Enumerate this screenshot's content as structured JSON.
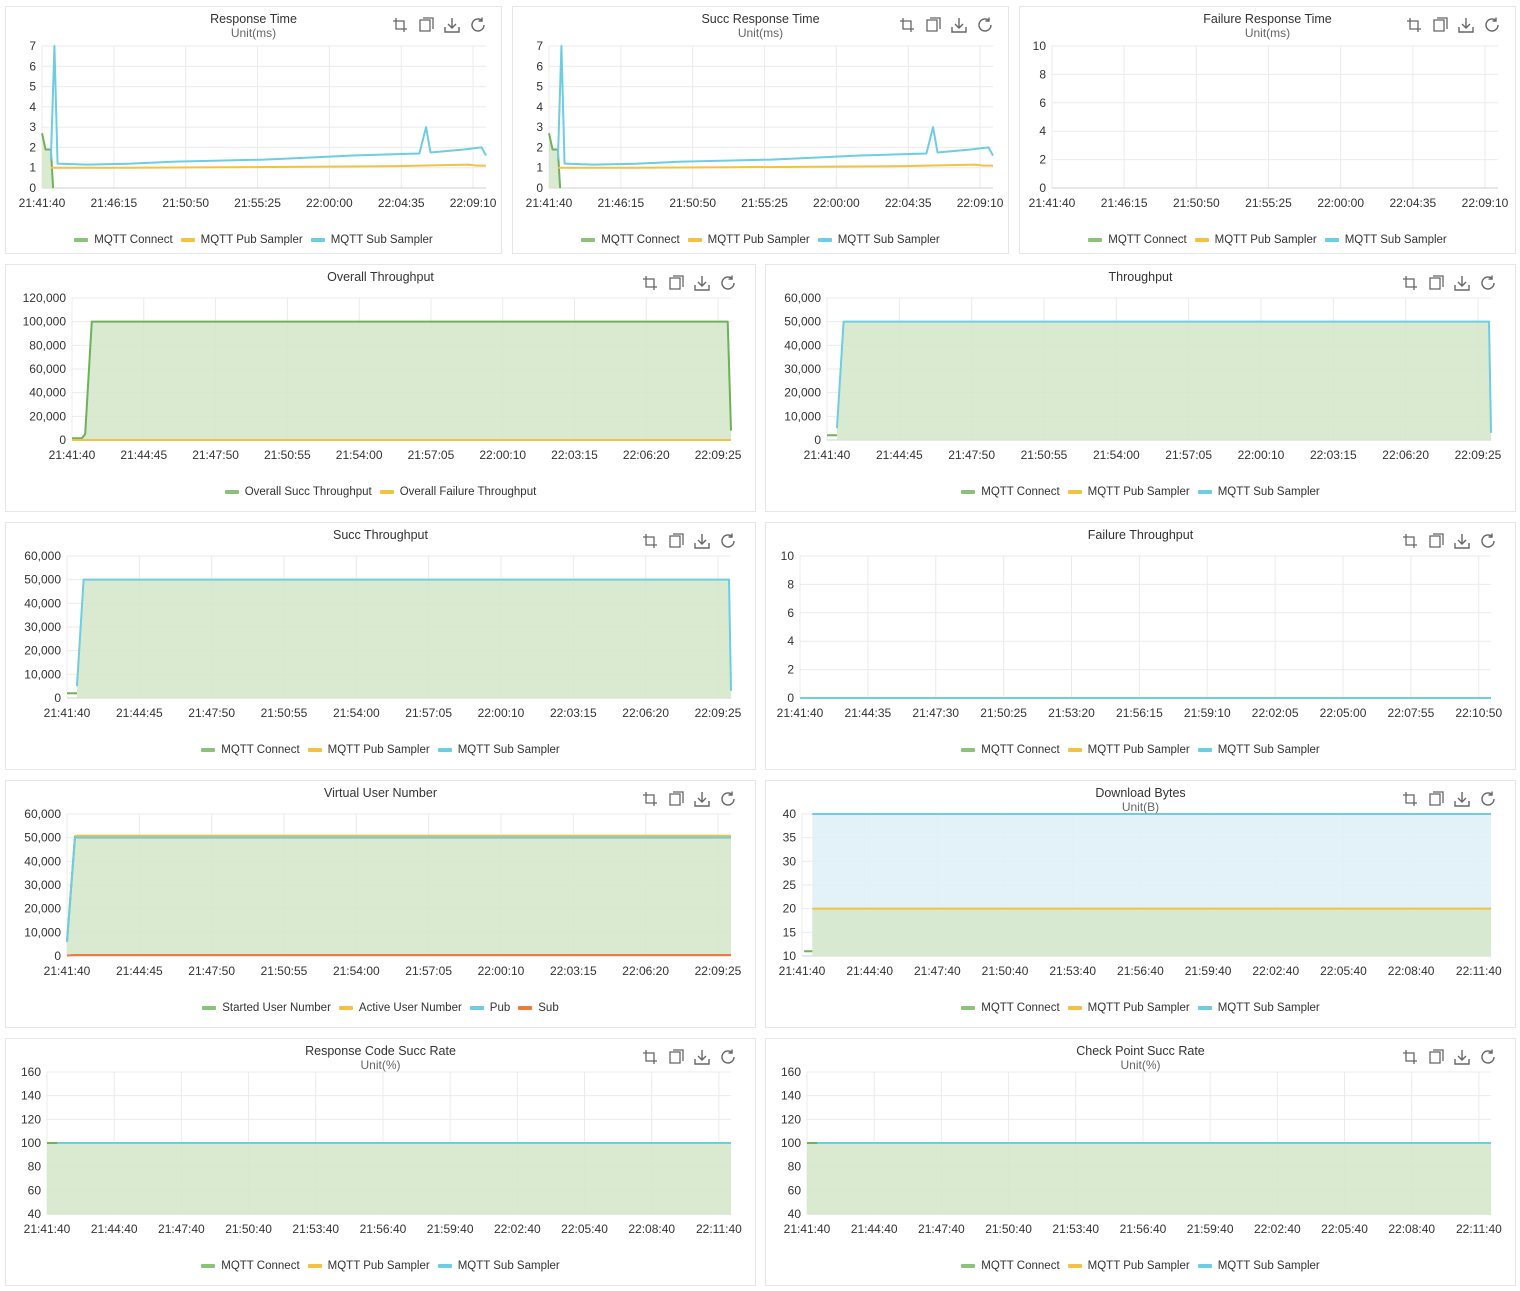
{
  "colors": {
    "connect": "#8bc27a",
    "connect_line": "#6fb05a",
    "pub": "#f5c143",
    "sub": "#6dcde2",
    "sub_user": "#f07a3a",
    "fill_green": "#d6e8cc",
    "fill_blue": "#dff1f7",
    "grid": "#ebebeb",
    "icon": "#666666"
  },
  "toolbox_icons": [
    "zoom-icon",
    "zoom-reset-icon",
    "download-icon",
    "restore-icon"
  ],
  "chart_data": [
    {
      "id": "response-time",
      "type": "line",
      "title": "Response Time",
      "subtitle": "Unit(ms)",
      "ylim": [
        0,
        7
      ],
      "yticks": [
        "0",
        "1",
        "2",
        "3",
        "4",
        "5",
        "6",
        "7"
      ],
      "xticks": [
        "21:41:40",
        "21:46:15",
        "21:50:50",
        "21:55:25",
        "22:00:00",
        "22:04:35",
        "22:09:10"
      ],
      "legend": [
        "MQTT Connect",
        "MQTT Pub Sampler",
        "MQTT Sub Sampler"
      ],
      "series": [
        {
          "name": "MQTT Connect",
          "color_key": "connect_line",
          "area": true,
          "points": [
            [
              0,
              2.7
            ],
            [
              0.008,
              1.9
            ],
            [
              0.02,
              1.9
            ],
            [
              0.025,
              0
            ]
          ]
        },
        {
          "name": "MQTT Pub Sampler",
          "color_key": "pub",
          "points": [
            [
              0.02,
              1.0
            ],
            [
              0.2,
              1.0
            ],
            [
              0.4,
              1.02
            ],
            [
              0.6,
              1.05
            ],
            [
              0.8,
              1.08
            ],
            [
              0.96,
              1.15
            ],
            [
              0.98,
              1.1
            ],
            [
              1,
              1.1
            ]
          ]
        },
        {
          "name": "MQTT Sub Sampler",
          "color_key": "sub",
          "points": [
            [
              0.02,
              1.4
            ],
            [
              0.028,
              7.0
            ],
            [
              0.035,
              1.2
            ],
            [
              0.1,
              1.15
            ],
            [
              0.2,
              1.2
            ],
            [
              0.3,
              1.3
            ],
            [
              0.4,
              1.35
            ],
            [
              0.5,
              1.4
            ],
            [
              0.6,
              1.5
            ],
            [
              0.7,
              1.6
            ],
            [
              0.85,
              1.7
            ],
            [
              0.865,
              3.0
            ],
            [
              0.875,
              1.75
            ],
            [
              0.95,
              1.9
            ],
            [
              0.99,
              2.0
            ],
            [
              1,
              1.6
            ]
          ]
        }
      ]
    },
    {
      "id": "succ-response-time",
      "type": "line",
      "title": "Succ Response Time",
      "subtitle": "Unit(ms)",
      "ylim": [
        0,
        7
      ],
      "yticks": [
        "0",
        "1",
        "2",
        "3",
        "4",
        "5",
        "6",
        "7"
      ],
      "xticks": [
        "21:41:40",
        "21:46:15",
        "21:50:50",
        "21:55:25",
        "22:00:00",
        "22:04:35",
        "22:09:10"
      ],
      "legend": [
        "MQTT Connect",
        "MQTT Pub Sampler",
        "MQTT Sub Sampler"
      ],
      "series": [
        {
          "name": "MQTT Connect",
          "color_key": "connect_line",
          "area": true,
          "points": [
            [
              0,
              2.7
            ],
            [
              0.008,
              1.9
            ],
            [
              0.02,
              1.9
            ],
            [
              0.025,
              0
            ]
          ]
        },
        {
          "name": "MQTT Pub Sampler",
          "color_key": "pub",
          "points": [
            [
              0.02,
              1.0
            ],
            [
              0.2,
              1.0
            ],
            [
              0.4,
              1.02
            ],
            [
              0.6,
              1.05
            ],
            [
              0.8,
              1.08
            ],
            [
              0.96,
              1.15
            ],
            [
              0.98,
              1.1
            ],
            [
              1,
              1.1
            ]
          ]
        },
        {
          "name": "MQTT Sub Sampler",
          "color_key": "sub",
          "points": [
            [
              0.02,
              1.4
            ],
            [
              0.028,
              7.0
            ],
            [
              0.035,
              1.2
            ],
            [
              0.1,
              1.15
            ],
            [
              0.2,
              1.2
            ],
            [
              0.3,
              1.3
            ],
            [
              0.4,
              1.35
            ],
            [
              0.5,
              1.4
            ],
            [
              0.6,
              1.5
            ],
            [
              0.7,
              1.6
            ],
            [
              0.85,
              1.7
            ],
            [
              0.865,
              3.0
            ],
            [
              0.875,
              1.75
            ],
            [
              0.95,
              1.9
            ],
            [
              0.99,
              2.0
            ],
            [
              1,
              1.6
            ]
          ]
        }
      ]
    },
    {
      "id": "failure-response-time",
      "type": "line",
      "title": "Failure Response Time",
      "subtitle": "Unit(ms)",
      "ylim": [
        0,
        10
      ],
      "yticks": [
        "0",
        "2",
        "4",
        "6",
        "8",
        "10"
      ],
      "xticks": [
        "21:41:40",
        "21:46:15",
        "21:50:50",
        "21:55:25",
        "22:00:00",
        "22:04:35",
        "22:09:10"
      ],
      "legend": [
        "MQTT Connect",
        "MQTT Pub Sampler",
        "MQTT Sub Sampler"
      ],
      "series": []
    },
    {
      "id": "overall-throughput",
      "type": "area",
      "title": "Overall Throughput",
      "subtitle": "",
      "ylim": [
        0,
        120000
      ],
      "yticks": [
        "0",
        "20,000",
        "40,000",
        "60,000",
        "80,000",
        "100,000",
        "120,000"
      ],
      "xticks": [
        "21:41:40",
        "21:44:45",
        "21:47:50",
        "21:50:55",
        "21:54:00",
        "21:57:05",
        "22:00:10",
        "22:03:15",
        "22:06:20",
        "22:09:25"
      ],
      "legend": [
        "Overall Succ Throughput",
        "Overall Failure Throughput"
      ],
      "legend_colors": [
        "connect",
        "pub"
      ],
      "series": [
        {
          "name": "Overall Succ Throughput",
          "color_key": "connect_line",
          "area": true,
          "points": [
            [
              0,
              1500
            ],
            [
              0.015,
              1500
            ],
            [
              0.02,
              5000
            ],
            [
              0.03,
              100000
            ],
            [
              0.995,
              100000
            ],
            [
              1,
              8000
            ]
          ]
        },
        {
          "name": "Overall Failure Throughput",
          "color_key": "pub",
          "points": [
            [
              0,
              0
            ],
            [
              1,
              0
            ]
          ]
        }
      ]
    },
    {
      "id": "throughput",
      "type": "area",
      "title": "Throughput",
      "subtitle": "",
      "ylim": [
        0,
        60000
      ],
      "yticks": [
        "0",
        "10,000",
        "20,000",
        "30,000",
        "40,000",
        "50,000",
        "60,000"
      ],
      "xticks": [
        "21:41:40",
        "21:44:45",
        "21:47:50",
        "21:50:55",
        "21:54:00",
        "21:57:05",
        "22:00:10",
        "22:03:15",
        "22:06:20",
        "22:09:25"
      ],
      "legend": [
        "MQTT Connect",
        "MQTT Pub Sampler",
        "MQTT Sub Sampler"
      ],
      "series": [
        {
          "name": "MQTT Sub Sampler",
          "color_key": "sub",
          "area": true,
          "points": [
            [
              0.015,
              5000
            ],
            [
              0.025,
              50000
            ],
            [
              0.997,
              50000
            ],
            [
              1,
              3000
            ]
          ]
        },
        {
          "name": "MQTT Connect",
          "color_key": "connect_line",
          "points": [
            [
              0,
              2000
            ],
            [
              0.015,
              2000
            ]
          ]
        }
      ]
    },
    {
      "id": "succ-throughput",
      "type": "area",
      "title": "Succ Throughput",
      "subtitle": "",
      "ylim": [
        0,
        60000
      ],
      "yticks": [
        "0",
        "10,000",
        "20,000",
        "30,000",
        "40,000",
        "50,000",
        "60,000"
      ],
      "xticks": [
        "21:41:40",
        "21:44:45",
        "21:47:50",
        "21:50:55",
        "21:54:00",
        "21:57:05",
        "22:00:10",
        "22:03:15",
        "22:06:20",
        "22:09:25"
      ],
      "legend": [
        "MQTT Connect",
        "MQTT Pub Sampler",
        "MQTT Sub Sampler"
      ],
      "series": [
        {
          "name": "MQTT Sub Sampler",
          "color_key": "sub",
          "area": true,
          "points": [
            [
              0.015,
              5000
            ],
            [
              0.025,
              50000
            ],
            [
              0.997,
              50000
            ],
            [
              1,
              3000
            ]
          ]
        },
        {
          "name": "MQTT Connect",
          "color_key": "connect_line",
          "points": [
            [
              0,
              2000
            ],
            [
              0.015,
              2000
            ]
          ]
        }
      ]
    },
    {
      "id": "failure-throughput",
      "type": "line",
      "title": "Failure Throughput",
      "subtitle": "",
      "ylim": [
        0,
        10
      ],
      "yticks": [
        "0",
        "2",
        "4",
        "6",
        "8",
        "10"
      ],
      "xticks": [
        "21:41:40",
        "21:44:35",
        "21:47:30",
        "21:50:25",
        "21:53:20",
        "21:56:15",
        "21:59:10",
        "22:02:05",
        "22:05:00",
        "22:07:55",
        "22:10:50"
      ],
      "legend": [
        "MQTT Connect",
        "MQTT Pub Sampler",
        "MQTT Sub Sampler"
      ],
      "series": [
        {
          "name": "MQTT Sub Sampler",
          "color_key": "sub",
          "points": [
            [
              0,
              0
            ],
            [
              1,
              0
            ]
          ]
        }
      ]
    },
    {
      "id": "virtual-user-number",
      "type": "area",
      "title": "Virtual User Number",
      "subtitle": "",
      "ylim": [
        0,
        60000
      ],
      "yticks": [
        "0",
        "10,000",
        "20,000",
        "30,000",
        "40,000",
        "50,000",
        "60,000"
      ],
      "xticks": [
        "21:41:40",
        "21:44:45",
        "21:47:50",
        "21:50:55",
        "21:54:00",
        "21:57:05",
        "22:00:10",
        "22:03:15",
        "22:06:20",
        "22:09:25"
      ],
      "legend": [
        "Started User Number",
        "Active User Number",
        "Pub",
        "Sub"
      ],
      "legend_colors": [
        "connect",
        "pub",
        "sub",
        "sub_user"
      ],
      "series": [
        {
          "name": "Started User Number",
          "color_key": "connect_line",
          "area": true,
          "points": [
            [
              0,
              6000
            ],
            [
              0.012,
              50500
            ],
            [
              1,
              50500
            ]
          ]
        },
        {
          "name": "Active User Number",
          "color_key": "pub",
          "points": [
            [
              0.012,
              50800
            ],
            [
              1,
              50800
            ]
          ]
        },
        {
          "name": "Pub",
          "color_key": "sub",
          "points": [
            [
              0,
              6000
            ],
            [
              0.012,
              50000
            ],
            [
              1,
              50000
            ]
          ]
        },
        {
          "name": "Sub",
          "color_key": "sub_user",
          "points": [
            [
              0,
              200
            ],
            [
              0.012,
              400
            ],
            [
              1,
              400
            ]
          ]
        }
      ]
    },
    {
      "id": "download-bytes",
      "type": "area",
      "title": "Download Bytes",
      "subtitle": "Unit(B)",
      "ylim": [
        10,
        40
      ],
      "yticks": [
        "10",
        "15",
        "20",
        "25",
        "30",
        "35",
        "40"
      ],
      "xticks": [
        "21:41:40",
        "21:44:40",
        "21:47:40",
        "21:50:40",
        "21:53:40",
        "21:56:40",
        "21:59:40",
        "22:02:40",
        "22:05:40",
        "22:08:40",
        "22:11:40"
      ],
      "legend": [
        "MQTT Connect",
        "MQTT Pub Sampler",
        "MQTT Sub Sampler"
      ],
      "series": [
        {
          "name": "MQTT Sub Sampler",
          "color_key": "sub",
          "area": true,
          "area_color": "fill_blue",
          "points": [
            [
              0.015,
              40
            ],
            [
              1,
              40
            ]
          ]
        },
        {
          "name": "MQTT Pub Sampler",
          "color_key": "pub",
          "area": true,
          "points": [
            [
              0.015,
              20
            ],
            [
              1,
              20
            ]
          ]
        },
        {
          "name": "MQTT Connect",
          "color_key": "connect_line",
          "points": [
            [
              0.003,
              11
            ],
            [
              0.015,
              11
            ]
          ]
        }
      ]
    },
    {
      "id": "response-code-succ-rate",
      "type": "area",
      "title": "Response Code Succ Rate",
      "subtitle": "Unit(%)",
      "ylim": [
        40,
        160
      ],
      "yticks": [
        "40",
        "60",
        "80",
        "100",
        "120",
        "140",
        "160"
      ],
      "xticks": [
        "21:41:40",
        "21:44:40",
        "21:47:40",
        "21:50:40",
        "21:53:40",
        "21:56:40",
        "21:59:40",
        "22:02:40",
        "22:05:40",
        "22:08:40",
        "22:11:40"
      ],
      "legend": [
        "MQTT Connect",
        "MQTT Pub Sampler",
        "MQTT Sub Sampler"
      ],
      "series": [
        {
          "name": "MQTT Sub Sampler",
          "color_key": "sub",
          "area": true,
          "points": [
            [
              0,
              100
            ],
            [
              1,
              100
            ]
          ]
        },
        {
          "name": "MQTT Connect",
          "color_key": "connect_line",
          "points": [
            [
              0,
              100
            ],
            [
              0.015,
              100
            ]
          ]
        }
      ]
    },
    {
      "id": "check-point-succ-rate",
      "type": "area",
      "title": "Check Point Succ Rate",
      "subtitle": "Unit(%)",
      "ylim": [
        40,
        160
      ],
      "yticks": [
        "40",
        "60",
        "80",
        "100",
        "120",
        "140",
        "160"
      ],
      "xticks": [
        "21:41:40",
        "21:44:40",
        "21:47:40",
        "21:50:40",
        "21:53:40",
        "21:56:40",
        "21:59:40",
        "22:02:40",
        "22:05:40",
        "22:08:40",
        "22:11:40"
      ],
      "legend": [
        "MQTT Connect",
        "MQTT Pub Sampler",
        "MQTT Sub Sampler"
      ],
      "series": [
        {
          "name": "MQTT Sub Sampler",
          "color_key": "sub",
          "area": true,
          "points": [
            [
              0,
              100
            ],
            [
              1,
              100
            ]
          ]
        },
        {
          "name": "MQTT Connect",
          "color_key": "connect_line",
          "points": [
            [
              0,
              100
            ],
            [
              0.015,
              100
            ]
          ]
        }
      ]
    }
  ]
}
